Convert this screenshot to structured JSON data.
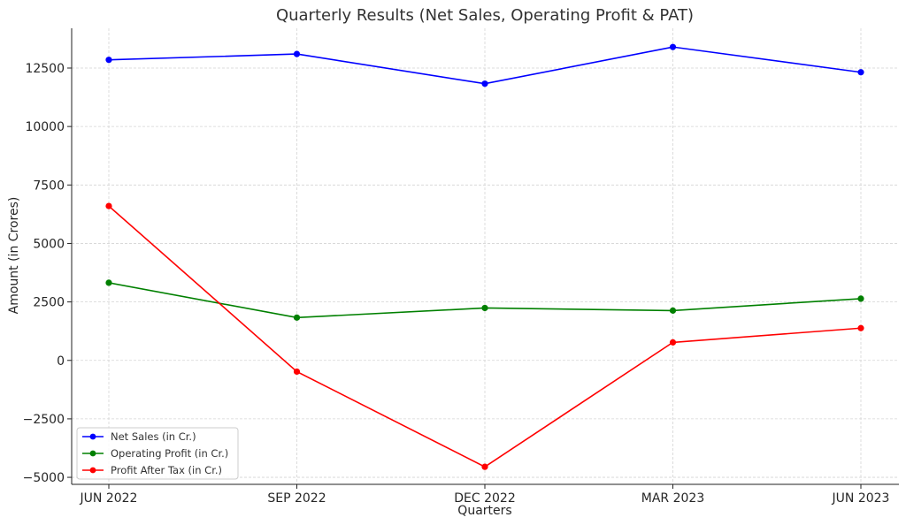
{
  "chart_data": {
    "type": "line",
    "title": "Quarterly Results (Net Sales, Operating Profit & PAT)",
    "xlabel": "Quarters",
    "ylabel": "Amount (in Crores)",
    "categories": [
      "JUN 2022",
      "SEP 2022",
      "DEC 2022",
      "MAR 2023",
      "JUN 2023"
    ],
    "y_ticks": [
      -5000,
      -2500,
      0,
      2500,
      5000,
      7500,
      10000,
      12500
    ],
    "y_tick_labels": [
      "−5000",
      "−2500",
      "0",
      "2500",
      "5000",
      "7500",
      "10000",
      "12500"
    ],
    "ylim": [
      -5300,
      14200
    ],
    "grid": true,
    "legend_position": "lower-left",
    "series": [
      {
        "name": "Net Sales (in Cr.)",
        "color": "#0000ff",
        "values": [
          12850,
          13100,
          11830,
          13400,
          12320
        ]
      },
      {
        "name": "Operating Profit (in Cr.)",
        "color": "#008000",
        "values": [
          3320,
          1830,
          2240,
          2130,
          2640
        ]
      },
      {
        "name": "Profit After Tax (in Cr.)",
        "color": "#ff0000",
        "values": [
          6600,
          -480,
          -4550,
          770,
          1380
        ]
      }
    ]
  }
}
